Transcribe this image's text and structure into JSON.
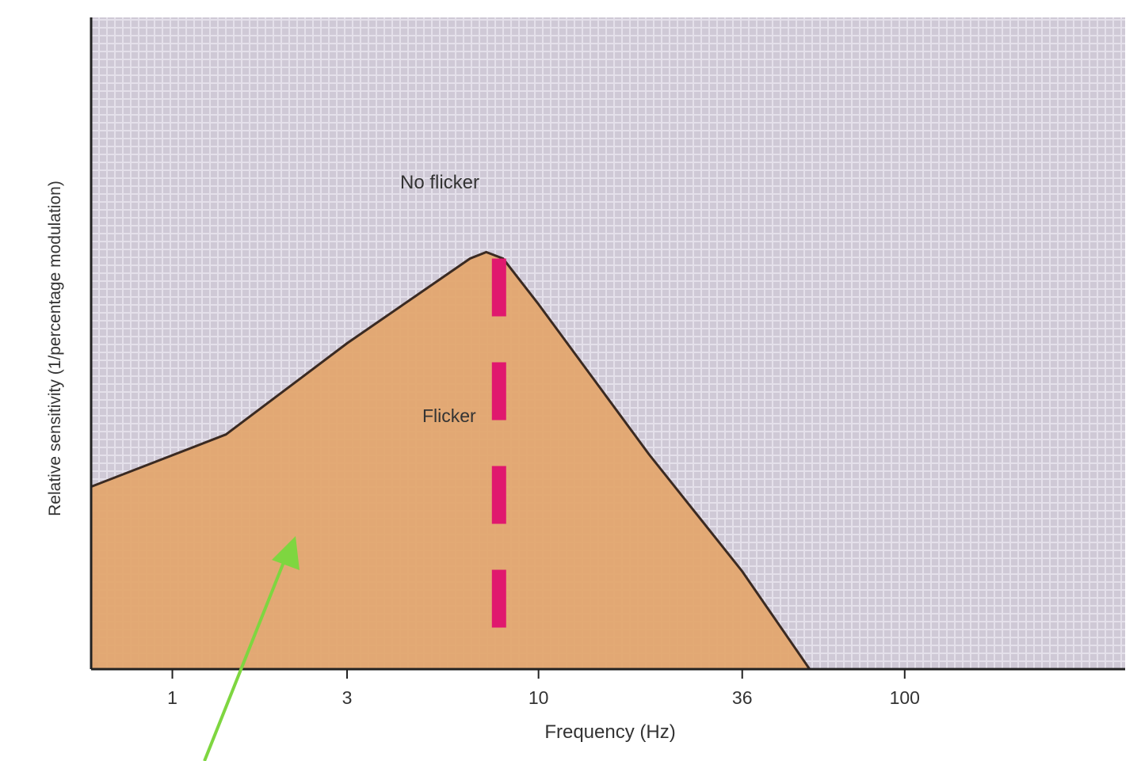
{
  "chart_data": {
    "type": "area",
    "x_scale": "log",
    "xlabel": "Frequency (Hz)",
    "ylabel": "Relative sensitivity (1/percentage modulation)",
    "x_ticks": [
      1,
      3,
      10,
      36,
      100
    ],
    "xlim": [
      0.6,
      400
    ],
    "ylim": [
      0,
      100
    ],
    "regions": [
      {
        "label": "No flicker",
        "color": "#cfc9d6"
      },
      {
        "label": "Flicker",
        "color": "#e3a76f"
      }
    ],
    "boundary": {
      "x": [
        0.6,
        1.4,
        3,
        6.5,
        7.2,
        8,
        10,
        20,
        36,
        55
      ],
      "y": [
        28,
        36,
        50,
        63,
        64,
        63,
        56,
        33,
        15,
        0
      ]
    },
    "annotations": [
      {
        "type": "dashed-vertical-line",
        "x": 7.8,
        "color": "#e0186e"
      },
      {
        "type": "arrow",
        "color": "#7ed640"
      }
    ],
    "grid": false
  }
}
